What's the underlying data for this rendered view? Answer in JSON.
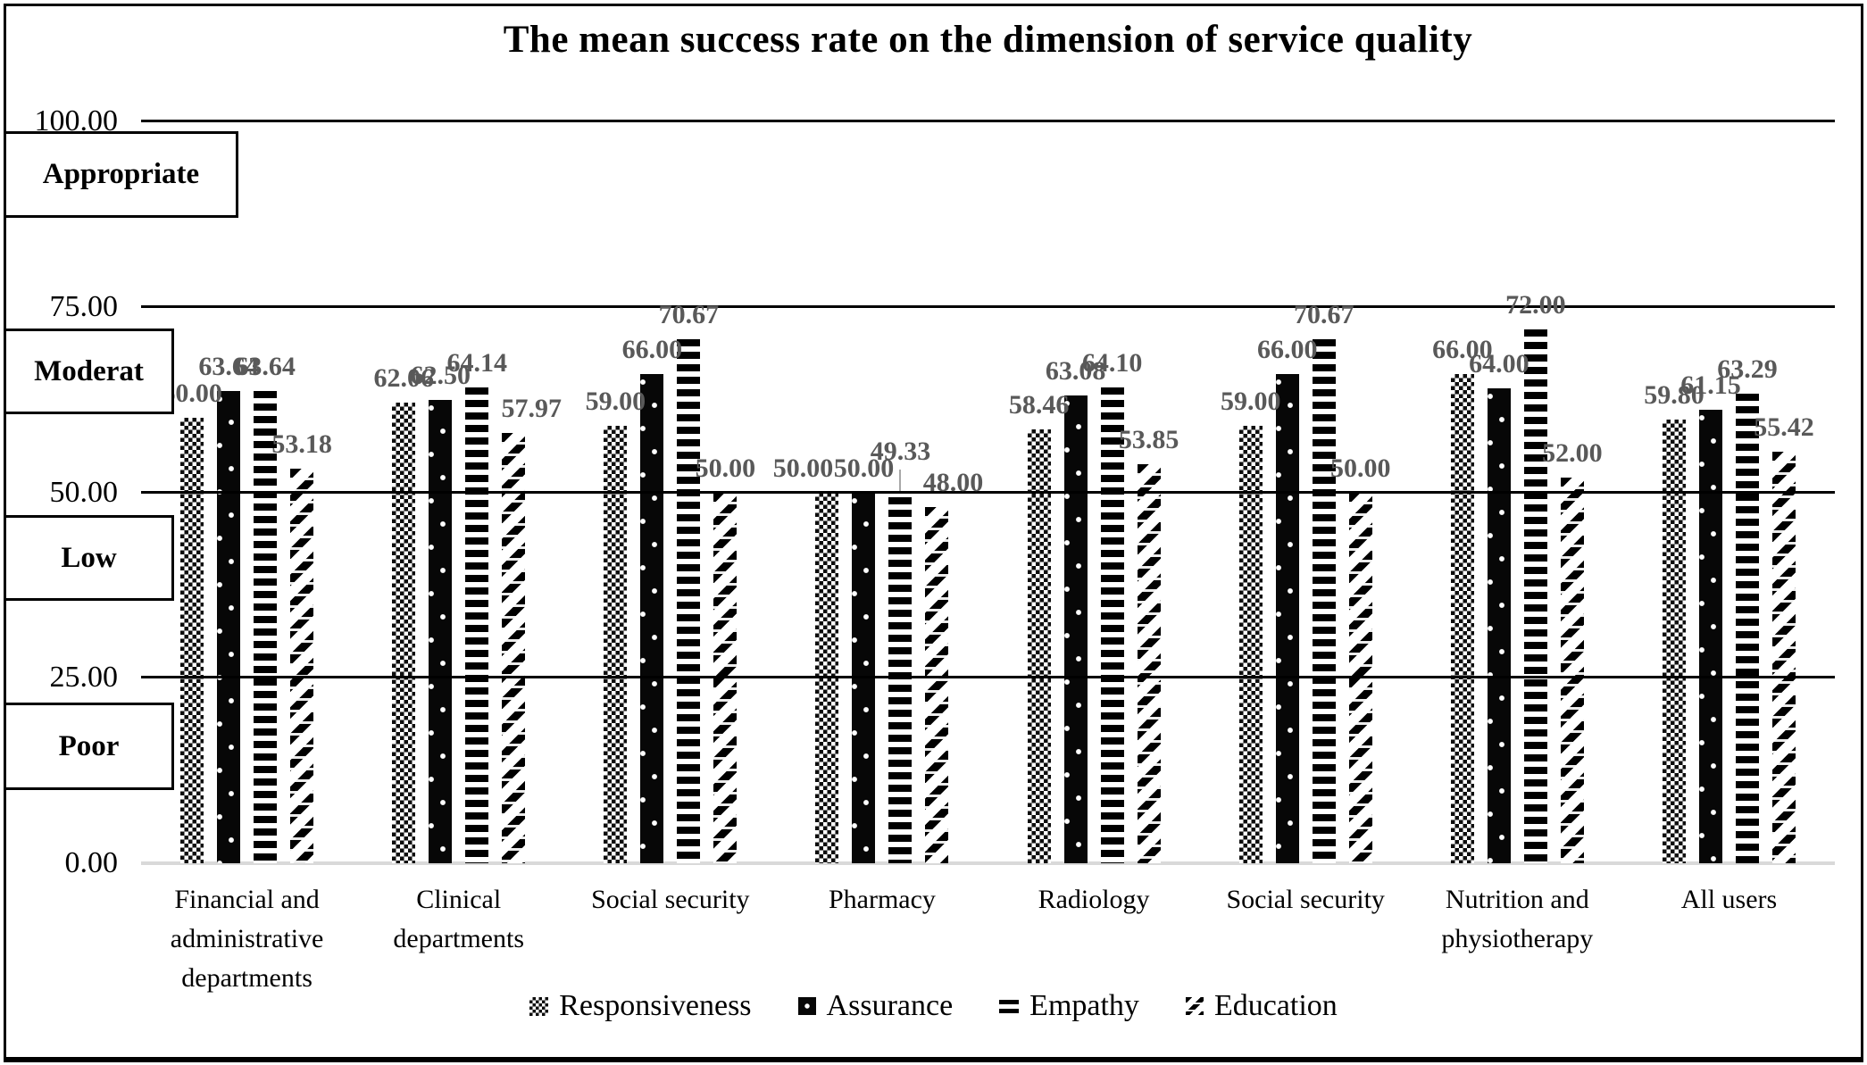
{
  "chart_data": {
    "type": "bar",
    "title": "The mean success rate on the dimension of service quality",
    "categories": [
      "Financial and\nadministrative\ndepartments",
      "Clinical  departments",
      "Social security",
      "Pharmacy",
      "Radiology",
      "Social security",
      "Nutrition and\nphysiotherapy",
      "All users"
    ],
    "series": [
      {
        "name": "Responsiveness",
        "pattern": "checker",
        "values": [
          60.0,
          62.06,
          59.0,
          50.0,
          58.46,
          59.0,
          66.0,
          59.8
        ]
      },
      {
        "name": "Assurance",
        "pattern": "dotblack",
        "values": [
          63.64,
          62.5,
          66.0,
          50.0,
          63.08,
          66.0,
          64.0,
          61.15
        ]
      },
      {
        "name": "Empathy",
        "pattern": "hstripe",
        "values": [
          63.64,
          64.14,
          70.67,
          49.33,
          64.1,
          70.67,
          72.0,
          63.29
        ]
      },
      {
        "name": "Education",
        "pattern": "diag",
        "values": [
          53.18,
          57.97,
          50.0,
          48.0,
          53.85,
          50.0,
          52.0,
          55.42
        ]
      }
    ],
    "y_axis": {
      "min": 0,
      "max": 100,
      "ticks": [
        {
          "v": 100,
          "label": "100.00"
        },
        {
          "v": 75,
          "label": "75.00"
        },
        {
          "v": 50,
          "label": "50.00"
        },
        {
          "v": 25,
          "label": "25.00"
        },
        {
          "v": 0,
          "label": "0.00"
        }
      ]
    },
    "zone_labels": [
      "Appropriate",
      "Moderat",
      "Low",
      "Poor"
    ],
    "legend_position": "bottom",
    "grid_on": true,
    "colors": {
      "ink": "#000000",
      "data_label": "#595959",
      "gridline": "#000000",
      "baseline": "#d9d9d9",
      "leader": "#a8a8a8"
    },
    "label_overrides": {
      "0-3": {
        "dx": -27
      },
      "2-3": {
        "dy": -24,
        "leader": true
      },
      "3-3": {
        "dx": 18
      },
      "3-1": {
        "dx": 20
      }
    }
  }
}
